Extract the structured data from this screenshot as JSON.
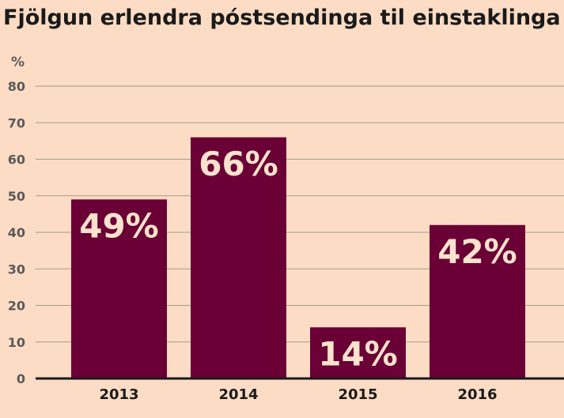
{
  "colors": {
    "background": "#fcdcc4",
    "bar": "#6b0036",
    "data_label": "#fde3cc",
    "gridline": "#a89a8c"
  },
  "chart_data": {
    "type": "bar",
    "title": "Fjölgun erlendra póstsendinga til einstaklinga",
    "ylabel": "%",
    "xlabel": "",
    "categories": [
      "2013",
      "2014",
      "2015",
      "2016"
    ],
    "values": [
      49,
      66,
      14,
      42
    ],
    "data_labels": [
      "49%",
      "66%",
      "14%",
      "42%"
    ],
    "ylim": [
      0,
      80
    ],
    "yticks": [
      "0",
      "10",
      "20",
      "30",
      "40",
      "50",
      "60",
      "70",
      "80"
    ],
    "grid": true,
    "legend": "none"
  }
}
